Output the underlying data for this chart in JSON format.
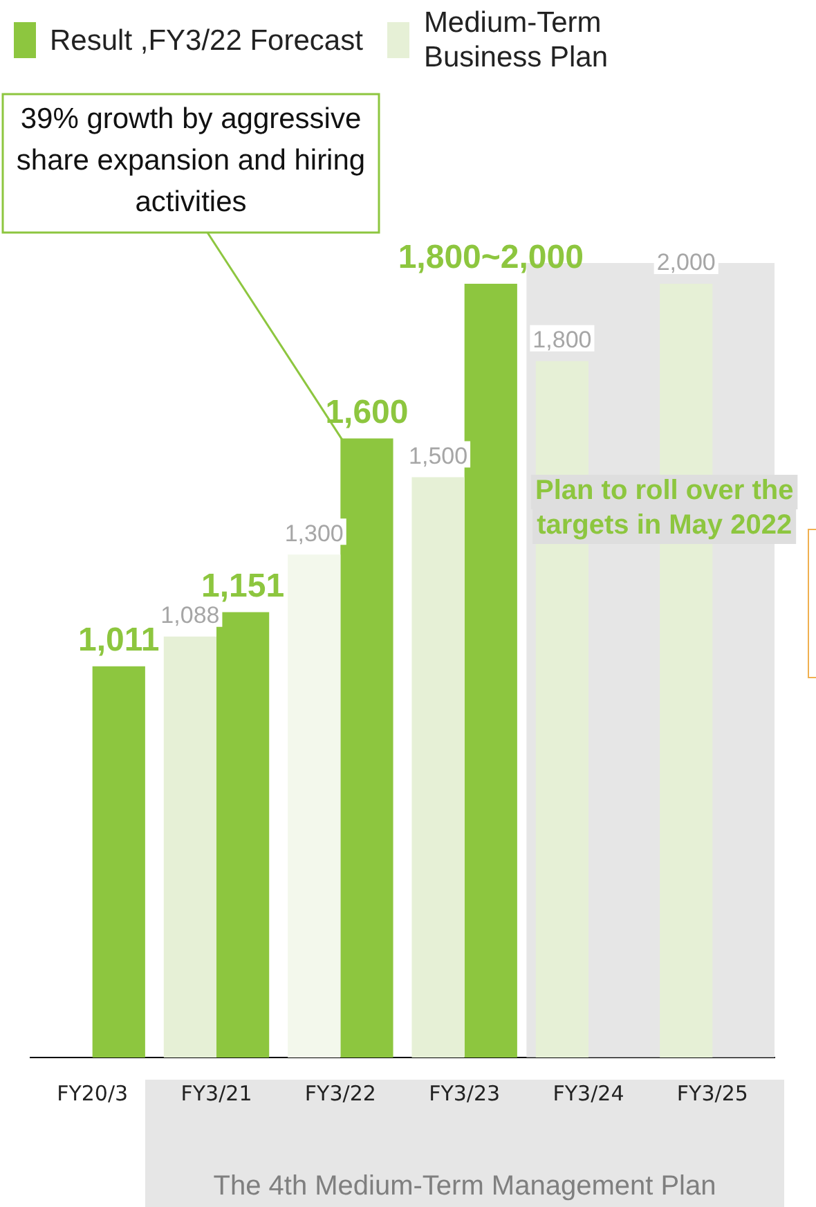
{
  "chart_data": {
    "type": "bar",
    "categories": [
      "FY20/3",
      "FY3/21",
      "FY3/22",
      "FY3/23",
      "FY3/24",
      "FY3/25"
    ],
    "series": [
      {
        "name": "Result ,FY3/22 Forecast",
        "color": "#8dc63f",
        "values": [
          1011,
          1151,
          1600,
          2000,
          null,
          null
        ],
        "value_labels": [
          "1,011",
          "1,151",
          "1,600",
          "1,800~2,000",
          null,
          null
        ]
      },
      {
        "name": "Medium-Term Business Plan",
        "color": "#e6f0d6",
        "colors": [
          "#e6f0d6",
          "#e6f0d6",
          "#f3f8ec",
          "#e6f0d6",
          "#e6f0d6",
          "#e6f0d6"
        ],
        "values": [
          null,
          1088,
          1300,
          1500,
          1800,
          2000
        ],
        "value_labels": [
          null,
          "1,088",
          "1,300",
          "1,500",
          "1,800",
          "2,000"
        ]
      }
    ],
    "legend": "top left",
    "bands": [
      {
        "axis": "x",
        "from": "FY3/24",
        "to": "FY3/25",
        "label": "Plan to roll over the targets in May 2022",
        "color": "#dedede"
      }
    ],
    "annotations": [
      {
        "text": "39% growth by aggressive share expansion and hiring activities",
        "x": "FY3/22",
        "y": 1600
      },
      "The 4th Medium-Term Management Plan"
    ]
  }
}
